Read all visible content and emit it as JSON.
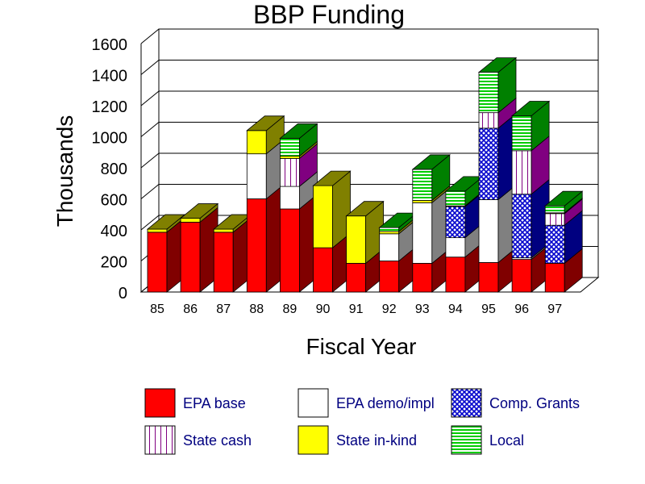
{
  "chart_data": {
    "type": "bar",
    "stacked": true,
    "style": "3d",
    "title": "BBP Funding",
    "xlabel": "Fiscal Year",
    "ylabel": "Thousands",
    "ylim": [
      0,
      1600
    ],
    "yticks": [
      "0",
      "200",
      "400",
      "600",
      "800",
      "1000",
      "1200",
      "1400",
      "1600"
    ],
    "categories": [
      "85",
      "86",
      "87",
      "88",
      "89",
      "90",
      "91",
      "92",
      "93",
      "94",
      "95",
      "96",
      "97"
    ],
    "series": [
      {
        "name": "EPA base",
        "values": [
          385,
          450,
          385,
          600,
          535,
          285,
          185,
          200,
          185,
          225,
          190,
          210,
          185
        ]
      },
      {
        "name": "EPA demo/impl",
        "values": [
          0,
          0,
          0,
          290,
          145,
          0,
          0,
          175,
          390,
          125,
          405,
          10,
          0
        ]
      },
      {
        "name": "Comp. Grants",
        "values": [
          0,
          0,
          0,
          0,
          0,
          0,
          0,
          0,
          0,
          200,
          460,
          410,
          245
        ]
      },
      {
        "name": "State cash",
        "values": [
          0,
          0,
          0,
          0,
          180,
          0,
          0,
          0,
          0,
          0,
          100,
          280,
          75
        ]
      },
      {
        "name": "State in-kind",
        "values": [
          20,
          25,
          20,
          150,
          15,
          400,
          305,
          15,
          15,
          5,
          0,
          0,
          5
        ]
      },
      {
        "name": "Local",
        "values": [
          0,
          0,
          0,
          0,
          115,
          0,
          0,
          25,
          200,
          95,
          260,
          225,
          45
        ]
      }
    ],
    "legend_position": "bottom",
    "colors": {
      "epa_base": {
        "face": "#ff0000",
        "side": "#800000"
      },
      "epa_demo": {
        "face": "#ffffff",
        "side": "#808080"
      },
      "comp_grants": {
        "face": "#0000cc",
        "side": "#000080"
      },
      "state_cash": {
        "face": "#ffffff",
        "side": "#800080"
      },
      "state_inkind": {
        "face": "#ffff00",
        "side": "#808000"
      },
      "local": {
        "face": "#00cc00",
        "side": "#008000"
      },
      "legend_text": "#000080"
    }
  }
}
